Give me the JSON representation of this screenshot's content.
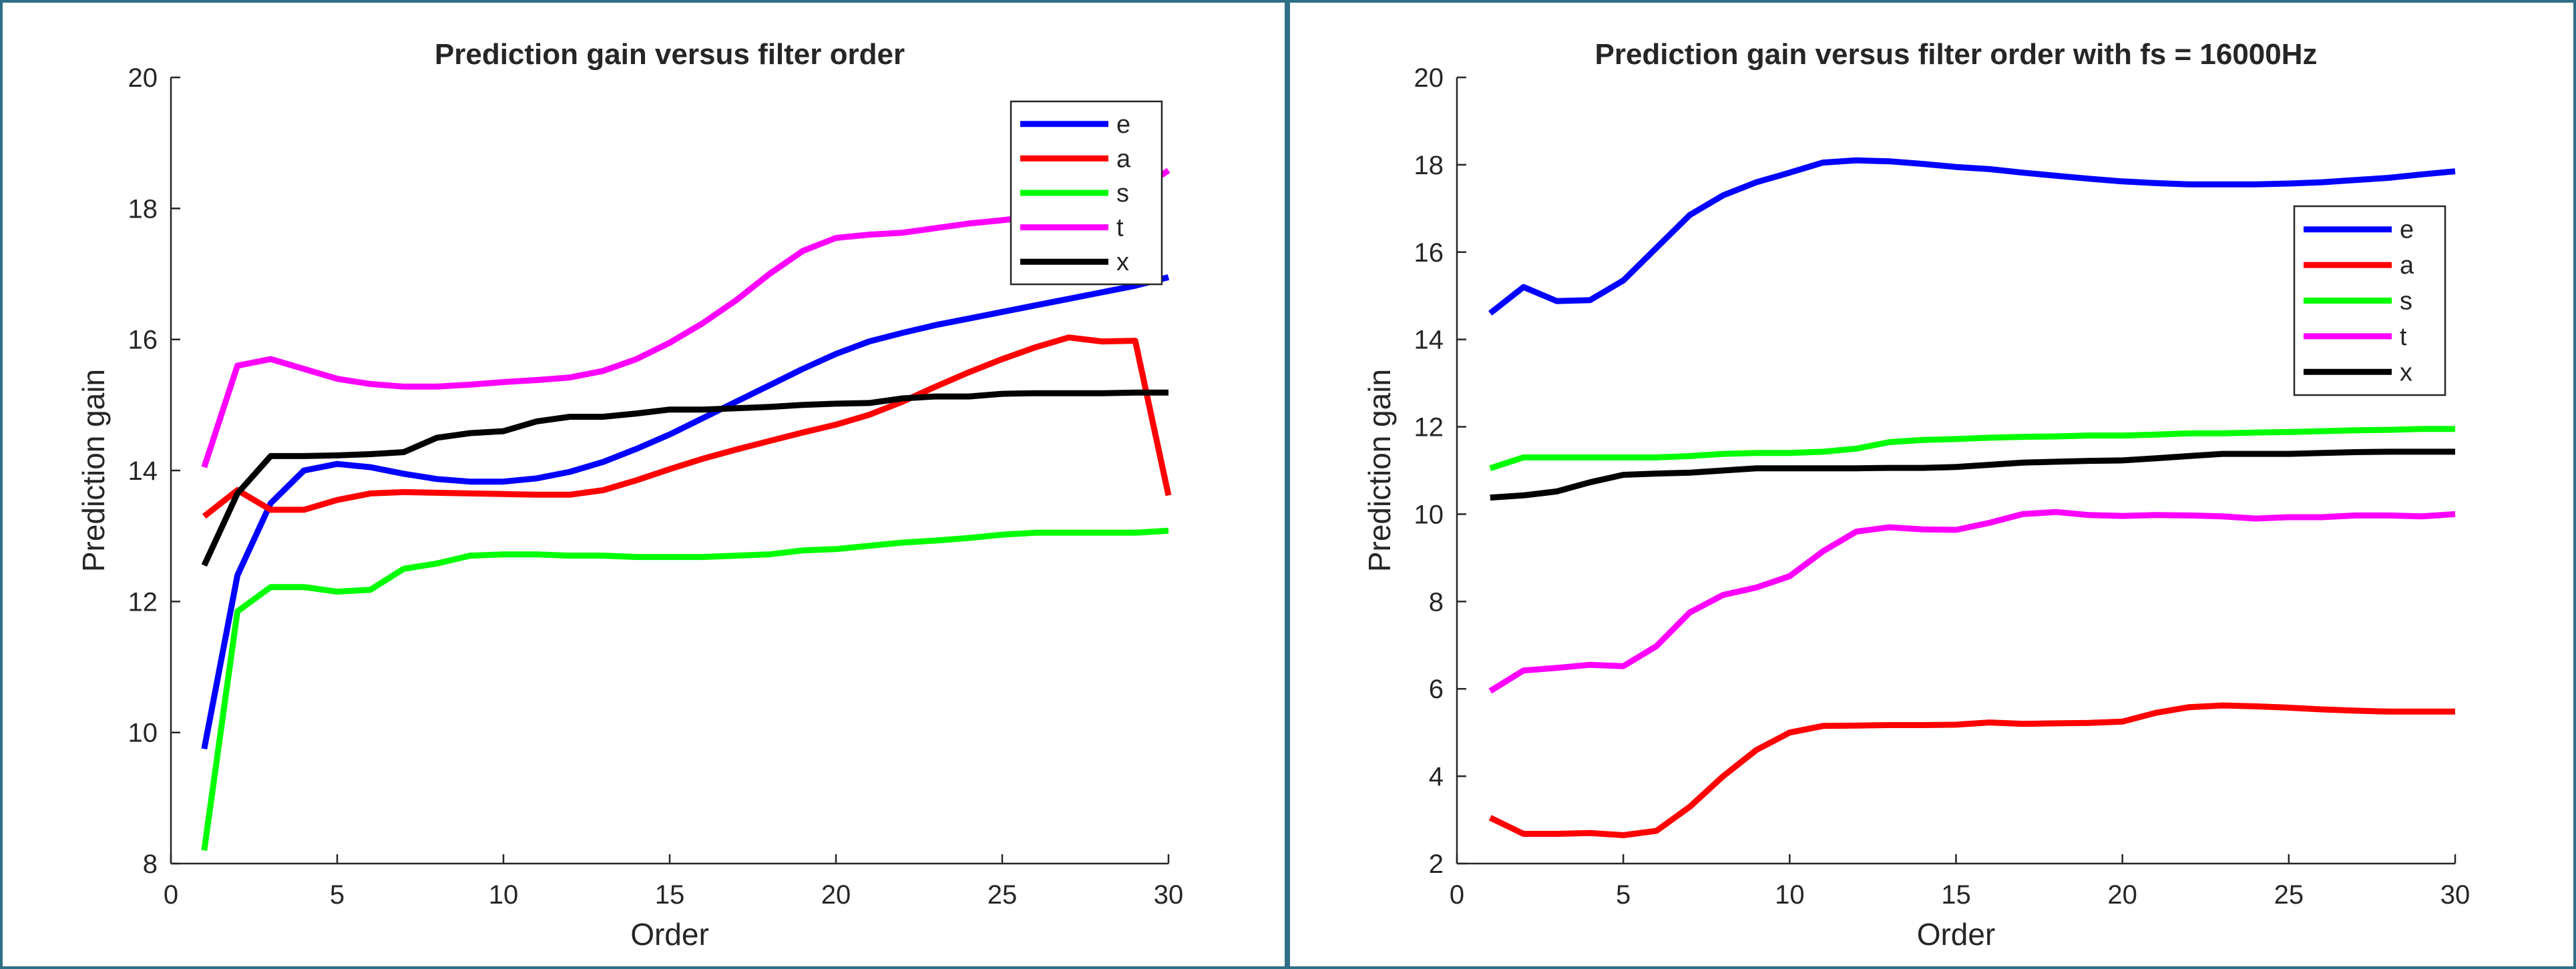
{
  "chart_data": [
    {
      "type": "line",
      "title": "Prediction gain versus filter order",
      "xlabel": "Order",
      "ylabel": "Prediction gain",
      "xlim": [
        0,
        30
      ],
      "ylim": [
        8,
        20
      ],
      "xticks": [
        0,
        5,
        10,
        15,
        20,
        25,
        30
      ],
      "yticks": [
        8,
        10,
        12,
        14,
        16,
        18,
        20
      ],
      "grid": false,
      "legend_position": "top-right",
      "x": [
        1,
        2,
        3,
        4,
        5,
        6,
        7,
        8,
        9,
        10,
        11,
        12,
        13,
        14,
        15,
        16,
        17,
        18,
        19,
        20,
        21,
        22,
        23,
        24,
        25,
        26,
        27,
        28,
        29,
        30
      ],
      "series": [
        {
          "name": "e",
          "color": "#0000ff",
          "values": [
            9.75,
            12.4,
            13.5,
            14.0,
            14.1,
            14.05,
            13.95,
            13.87,
            13.83,
            13.83,
            13.88,
            13.98,
            14.13,
            14.33,
            14.55,
            14.8,
            15.05,
            15.3,
            15.55,
            15.78,
            15.97,
            16.1,
            16.22,
            16.32,
            16.42,
            16.52,
            16.62,
            16.72,
            16.82,
            16.95
          ]
        },
        {
          "name": "a",
          "color": "#ff0000",
          "values": [
            13.3,
            13.7,
            13.4,
            13.4,
            13.55,
            13.65,
            13.67,
            13.66,
            13.65,
            13.64,
            13.63,
            13.63,
            13.7,
            13.85,
            14.02,
            14.18,
            14.32,
            14.45,
            14.58,
            14.7,
            14.85,
            15.05,
            15.28,
            15.5,
            15.7,
            15.88,
            16.03,
            15.97,
            15.98,
            13.62
          ]
        },
        {
          "name": "s",
          "color": "#00ff00",
          "values": [
            8.2,
            11.85,
            12.22,
            12.22,
            12.15,
            12.18,
            12.5,
            12.58,
            12.7,
            12.72,
            12.72,
            12.7,
            12.7,
            12.68,
            12.68,
            12.68,
            12.7,
            12.72,
            12.78,
            12.8,
            12.85,
            12.9,
            12.93,
            12.97,
            13.02,
            13.05,
            13.05,
            13.05,
            13.05,
            13.08
          ]
        },
        {
          "name": "t",
          "color": "#ff00ff",
          "values": [
            14.05,
            15.6,
            15.7,
            15.55,
            15.4,
            15.32,
            15.28,
            15.28,
            15.31,
            15.35,
            15.38,
            15.42,
            15.52,
            15.7,
            15.95,
            16.25,
            16.6,
            17.0,
            17.35,
            17.55,
            17.6,
            17.63,
            17.7,
            17.77,
            17.82,
            17.88,
            17.95,
            18.05,
            18.25,
            18.58
          ]
        },
        {
          "name": "x",
          "color": "#000000",
          "values": [
            12.55,
            13.65,
            14.22,
            14.22,
            14.23,
            14.25,
            14.28,
            14.5,
            14.57,
            14.6,
            14.75,
            14.82,
            14.82,
            14.87,
            14.93,
            14.93,
            14.95,
            14.97,
            15.0,
            15.02,
            15.03,
            15.1,
            15.13,
            15.13,
            15.17,
            15.18,
            15.18,
            15.18,
            15.19,
            15.19
          ]
        }
      ]
    },
    {
      "type": "line",
      "title": "Prediction gain versus filter order with fs = 16000Hz",
      "xlabel": "Order",
      "ylabel": "Prediction gain",
      "xlim": [
        0,
        30
      ],
      "ylim": [
        2,
        20
      ],
      "xticks": [
        0,
        5,
        10,
        15,
        20,
        25,
        30
      ],
      "yticks": [
        2,
        4,
        6,
        8,
        10,
        12,
        14,
        16,
        18,
        20
      ],
      "grid": false,
      "legend_position": "upper-right",
      "x": [
        1,
        2,
        3,
        4,
        5,
        6,
        7,
        8,
        9,
        10,
        11,
        12,
        13,
        14,
        15,
        16,
        17,
        18,
        19,
        20,
        21,
        22,
        23,
        24,
        25,
        26,
        27,
        28,
        29,
        30
      ],
      "series": [
        {
          "name": "e",
          "color": "#0000ff",
          "values": [
            14.6,
            15.2,
            14.88,
            14.9,
            15.35,
            16.1,
            16.85,
            17.3,
            17.6,
            17.82,
            18.05,
            18.1,
            18.08,
            18.02,
            17.95,
            17.9,
            17.82,
            17.75,
            17.68,
            17.62,
            17.58,
            17.55,
            17.55,
            17.55,
            17.57,
            17.6,
            17.65,
            17.7,
            17.78,
            17.85
          ]
        },
        {
          "name": "a",
          "color": "#ff0000",
          "values": [
            3.05,
            2.68,
            2.68,
            2.7,
            2.65,
            2.75,
            3.3,
            4.0,
            4.6,
            5.0,
            5.15,
            5.16,
            5.17,
            5.17,
            5.18,
            5.23,
            5.2,
            5.21,
            5.22,
            5.25,
            5.45,
            5.58,
            5.62,
            5.6,
            5.57,
            5.53,
            5.5,
            5.48,
            5.48,
            5.48
          ]
        },
        {
          "name": "s",
          "color": "#00ff00",
          "values": [
            11.05,
            11.3,
            11.3,
            11.3,
            11.3,
            11.3,
            11.33,
            11.38,
            11.4,
            11.4,
            11.43,
            11.5,
            11.65,
            11.7,
            11.72,
            11.75,
            11.77,
            11.78,
            11.8,
            11.8,
            11.82,
            11.85,
            11.85,
            11.87,
            11.88,
            11.9,
            11.92,
            11.93,
            11.95,
            11.95
          ]
        },
        {
          "name": "t",
          "color": "#ff00ff",
          "values": [
            5.95,
            6.42,
            6.48,
            6.55,
            6.52,
            6.98,
            7.75,
            8.15,
            8.32,
            8.58,
            9.15,
            9.6,
            9.7,
            9.65,
            9.64,
            9.8,
            10.0,
            10.05,
            9.98,
            9.96,
            9.98,
            9.97,
            9.95,
            9.9,
            9.93,
            9.93,
            9.97,
            9.97,
            9.95,
            10.0
          ]
        },
        {
          "name": "x",
          "color": "#000000",
          "values": [
            10.38,
            10.43,
            10.52,
            10.73,
            10.9,
            10.93,
            10.95,
            11.0,
            11.05,
            11.05,
            11.05,
            11.05,
            11.06,
            11.06,
            11.08,
            11.13,
            11.18,
            11.2,
            11.22,
            11.23,
            11.28,
            11.33,
            11.38,
            11.38,
            11.38,
            11.4,
            11.42,
            11.43,
            11.43,
            11.43
          ]
        }
      ]
    }
  ]
}
